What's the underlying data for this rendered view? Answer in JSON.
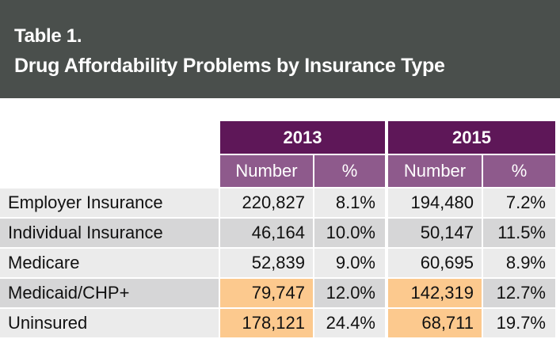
{
  "title": {
    "line1": "Table 1.",
    "line2": "Drug Affordability Problems by Insurance Type"
  },
  "table": {
    "years": [
      "2013",
      "2015"
    ],
    "subheaders": [
      "Number",
      "%",
      "Number",
      "%"
    ],
    "rows": [
      {
        "label": "Employer Insurance",
        "n2013": "220,827",
        "p2013": "8.1%",
        "n2015": "194,480",
        "p2015": "7.2%"
      },
      {
        "label": "Individual Insurance",
        "n2013": "46,164",
        "p2013": "10.0%",
        "n2015": "50,147",
        "p2015": "11.5%"
      },
      {
        "label": "Medicare",
        "n2013": "52,839",
        "p2013": "9.0%",
        "n2015": "60,695",
        "p2015": "8.9%"
      },
      {
        "label": "Medicaid/CHP+",
        "n2013": "79,747",
        "p2013": "12.0%",
        "n2015": "142,319",
        "p2015": "12.7%"
      },
      {
        "label": "Uninsured",
        "n2013": "178,121",
        "p2013": "24.4%",
        "n2015": "68,711",
        "p2015": "19.7%"
      }
    ]
  },
  "colors": {
    "header_bg": "#4a4f4c",
    "year_bg": "#5e1758",
    "subheader_bg": "#8e5a8c",
    "highlight": "#fcc98e",
    "row_light": "#ebebeb",
    "row_dark": "#d6d6d7"
  }
}
